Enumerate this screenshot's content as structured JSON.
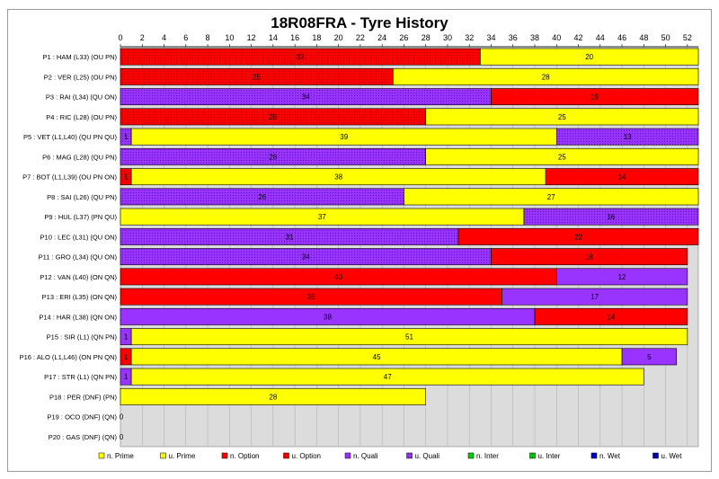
{
  "chart_data": {
    "type": "bar",
    "orientation": "horizontal-stacked",
    "title": "18R08FRA - Tyre History",
    "xlim": [
      0,
      53
    ],
    "xticks": [
      0,
      2,
      4,
      6,
      8,
      10,
      12,
      14,
      16,
      18,
      20,
      22,
      24,
      26,
      28,
      30,
      32,
      34,
      36,
      38,
      40,
      42,
      44,
      46,
      48,
      50,
      52
    ],
    "grid": true,
    "legend_position": "bottom",
    "tyre_types": [
      {
        "key": "n_prime",
        "label": "n. Prime",
        "color": "#ffff00",
        "pattern": false
      },
      {
        "key": "u_prime",
        "label": "u. Prime",
        "color": "#ffff00",
        "pattern": true
      },
      {
        "key": "n_option",
        "label": "n. Option",
        "color": "#ff0000",
        "pattern": false
      },
      {
        "key": "u_option",
        "label": "u. Option",
        "color": "#ff0000",
        "pattern": true
      },
      {
        "key": "n_quali",
        "label": "n. Quali",
        "color": "#9933ff",
        "pattern": false
      },
      {
        "key": "u_quali",
        "label": "u. Quali",
        "color": "#9933ff",
        "pattern": true
      },
      {
        "key": "n_inter",
        "label": "n. Inter",
        "color": "#00cc00",
        "pattern": false
      },
      {
        "key": "u_inter",
        "label": "u. Inter",
        "color": "#00cc00",
        "pattern": true
      },
      {
        "key": "n_wet",
        "label": "n. Wet",
        "color": "#0000cc",
        "pattern": false
      },
      {
        "key": "u_wet",
        "label": "u. Wet",
        "color": "#0000cc",
        "pattern": true
      }
    ],
    "rows": [
      {
        "label": "P1 : HAM (L33) (OU PN)",
        "stints": [
          {
            "type": "u_option",
            "laps": 33
          },
          {
            "type": "n_prime",
            "laps": 20
          }
        ]
      },
      {
        "label": "P2 : VER (L25) (OU PN)",
        "stints": [
          {
            "type": "u_option",
            "laps": 25
          },
          {
            "type": "n_prime",
            "laps": 28
          }
        ]
      },
      {
        "label": "P3 : RAI (L34) (QU ON)",
        "stints": [
          {
            "type": "u_quali",
            "laps": 34
          },
          {
            "type": "n_option",
            "laps": 19
          }
        ]
      },
      {
        "label": "P4 : RIC (L28) (OU PN)",
        "stints": [
          {
            "type": "u_option",
            "laps": 28
          },
          {
            "type": "n_prime",
            "laps": 25
          }
        ]
      },
      {
        "label": "P5 : VET (L1,L40) (QU PN QU)",
        "stints": [
          {
            "type": "u_quali",
            "laps": 1
          },
          {
            "type": "n_prime",
            "laps": 39
          },
          {
            "type": "u_quali",
            "laps": 13
          }
        ]
      },
      {
        "label": "P6 : MAG (L28) (QU PN)",
        "stints": [
          {
            "type": "u_quali",
            "laps": 28
          },
          {
            "type": "n_prime",
            "laps": 25
          }
        ]
      },
      {
        "label": "P7 : BOT (L1,L39) (OU PN ON)",
        "stints": [
          {
            "type": "u_option",
            "laps": 1
          },
          {
            "type": "n_prime",
            "laps": 38
          },
          {
            "type": "n_option",
            "laps": 14
          }
        ]
      },
      {
        "label": "P8 : SAI (L26) (QU PN)",
        "stints": [
          {
            "type": "u_quali",
            "laps": 26
          },
          {
            "type": "n_prime",
            "laps": 27
          }
        ]
      },
      {
        "label": "P9 : HUL (L37) (PN QU)",
        "stints": [
          {
            "type": "n_prime",
            "laps": 37
          },
          {
            "type": "u_quali",
            "laps": 16
          }
        ]
      },
      {
        "label": "P10 : LEC (L31) (QU ON)",
        "stints": [
          {
            "type": "u_quali",
            "laps": 31
          },
          {
            "type": "n_option",
            "laps": 22
          }
        ]
      },
      {
        "label": "P11 : GRO (L34) (QU ON)",
        "stints": [
          {
            "type": "u_quali",
            "laps": 34
          },
          {
            "type": "n_option",
            "laps": 18
          }
        ]
      },
      {
        "label": "P12 : VAN (L40) (ON QN)",
        "stints": [
          {
            "type": "n_option",
            "laps": 40
          },
          {
            "type": "n_quali",
            "laps": 12
          }
        ]
      },
      {
        "label": "P13 : ERI (L35) (ON QN)",
        "stints": [
          {
            "type": "n_option",
            "laps": 35
          },
          {
            "type": "n_quali",
            "laps": 17
          }
        ]
      },
      {
        "label": "P14 : HAR (L38) (QN ON)",
        "stints": [
          {
            "type": "n_quali",
            "laps": 38
          },
          {
            "type": "n_option",
            "laps": 14
          }
        ]
      },
      {
        "label": "P15 : SIR (L1) (QN PN)",
        "stints": [
          {
            "type": "n_quali",
            "laps": 1
          },
          {
            "type": "n_prime",
            "laps": 51
          }
        ]
      },
      {
        "label": "P16 : ALO (L1,L46) (ON PN QN)",
        "stints": [
          {
            "type": "n_option",
            "laps": 1
          },
          {
            "type": "n_prime",
            "laps": 45
          },
          {
            "type": "n_quali",
            "laps": 5
          }
        ]
      },
      {
        "label": "P17 : STR (L1) (QN PN)",
        "stints": [
          {
            "type": "n_quali",
            "laps": 1
          },
          {
            "type": "n_prime",
            "laps": 47
          }
        ]
      },
      {
        "label": "P18 : PER (DNF) (PN)",
        "stints": [
          {
            "type": "n_prime",
            "laps": 28
          }
        ]
      },
      {
        "label": "P19 : OCO (DNF) (QN)",
        "stints": [],
        "end_label": "0"
      },
      {
        "label": "P20 : GAS (DNF) (QN)",
        "stints": [],
        "end_label": "0"
      }
    ]
  }
}
